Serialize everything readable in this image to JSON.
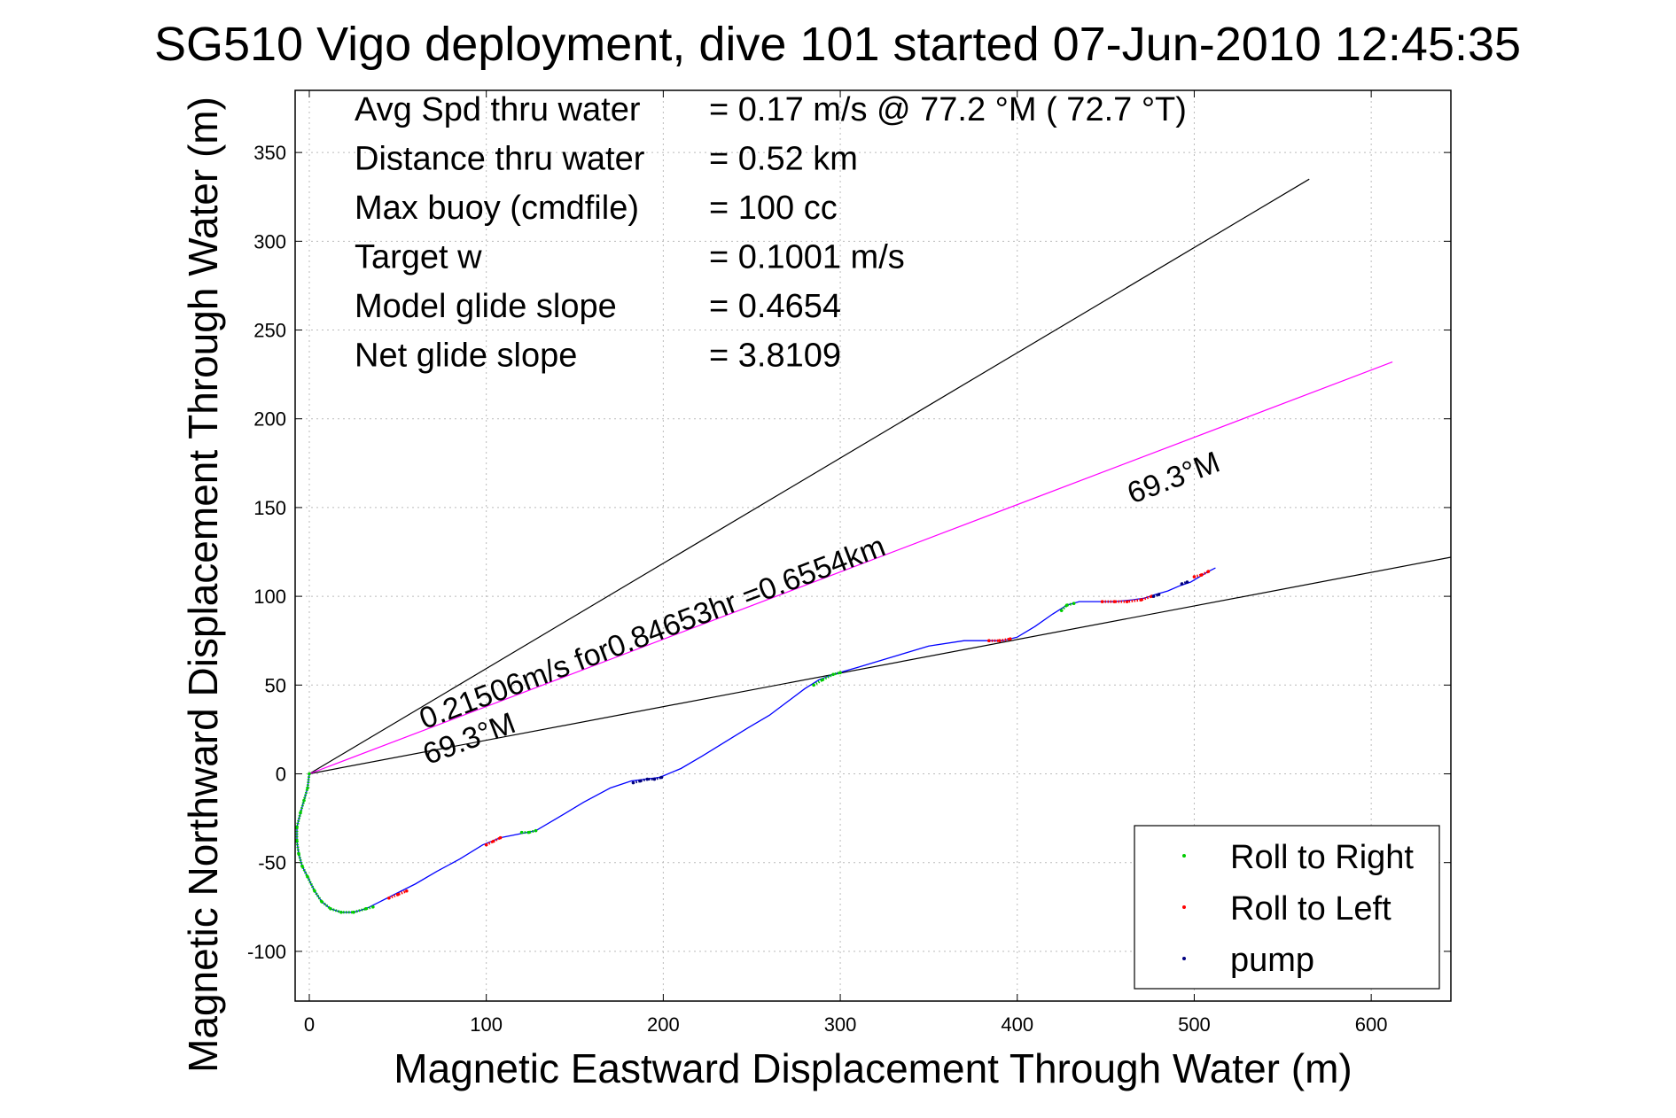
{
  "chart_data": {
    "type": "scatter",
    "title": "SG510 Vigo deployment, dive 101 started 07-Jun-2010 12:45:35",
    "xlabel": "Magnetic Eastward Displacement Through Water (m)",
    "ylabel": "Magnetic Northward Displacement Through Water (m)",
    "xlim": [
      -8,
      645
    ],
    "ylim": [
      -128,
      385
    ],
    "xticks": [
      0,
      100,
      200,
      300,
      400,
      500,
      600
    ],
    "yticks": [
      -100,
      -50,
      0,
      50,
      100,
      150,
      200,
      250,
      300,
      350
    ],
    "grid": true,
    "legend_position": "bottom-right",
    "stats": [
      {
        "label": "Avg Spd thru water",
        "value": "=  0.17 m/s @  77.2 °M ( 72.7 °T)"
      },
      {
        "label": "Distance thru water",
        "value": "=  0.52 km"
      },
      {
        "label": "Max buoy (cmdfile)",
        "value": "= 100 cc"
      },
      {
        "label": "Target w",
        "value": "= 0.1001 m/s"
      },
      {
        "label": "Model glide slope",
        "value": "= 0.4654"
      },
      {
        "label": "Net glide slope",
        "value": "= 3.8109"
      }
    ],
    "annotations": [
      {
        "text": "0.21506m/s for0.84653hr =0.6554km",
        "x": 65,
        "y": 25
      },
      {
        "text": "69.3°M",
        "x": 67,
        "y": 5
      },
      {
        "text": "69.3°M",
        "x": 465,
        "y": 152
      }
    ],
    "reference_lines": [
      {
        "color": "#000000",
        "points": [
          [
            0,
            0
          ],
          [
            565,
            335
          ]
        ]
      },
      {
        "color": "#000000",
        "points": [
          [
            0,
            0
          ],
          [
            645,
            122
          ]
        ]
      },
      {
        "color": "#ff00ff",
        "points": [
          [
            0,
            0
          ],
          [
            612,
            232
          ]
        ]
      }
    ],
    "track": {
      "color": "#0000ff",
      "x": [
        0,
        -1,
        -3,
        -5,
        -7,
        -7,
        -6,
        -4,
        -1,
        3,
        7,
        12,
        18,
        25,
        32,
        40,
        50,
        60,
        72,
        85,
        98,
        108,
        118,
        128,
        140,
        155,
        170,
        182,
        190,
        198,
        210,
        222,
        235,
        248,
        260,
        272,
        280,
        288,
        296,
        310,
        330,
        350,
        370,
        385,
        392,
        400,
        410,
        420,
        428,
        435,
        445,
        455,
        465,
        472,
        478,
        485,
        492,
        498,
        503,
        508,
        512
      ],
      "y": [
        0,
        -8,
        -15,
        -22,
        -30,
        -38,
        -45,
        -52,
        -58,
        -66,
        -72,
        -76,
        -78,
        -78,
        -76,
        -72,
        -67,
        -62,
        -55,
        -48,
        -40,
        -36,
        -34,
        -32,
        -25,
        -16,
        -8,
        -4,
        -3,
        -2,
        3,
        10,
        18,
        26,
        33,
        42,
        48,
        53,
        56,
        60,
        66,
        72,
        75,
        75,
        75,
        77,
        83,
        90,
        95,
        97,
        97,
        97,
        98,
        99,
        101,
        103,
        106,
        108,
        111,
        114,
        116
      ]
    },
    "series": [
      {
        "name": "Roll to Right",
        "color": "#00cc00",
        "segments": [
          {
            "x": [
              0,
              -1,
              -3,
              -5,
              -7,
              -7,
              -6,
              -4,
              -1,
              3,
              7,
              12,
              18,
              25,
              32,
              36
            ],
            "y": [
              0,
              -8,
              -15,
              -22,
              -30,
              -38,
              -45,
              -52,
              -58,
              -66,
              -72,
              -76,
              -78,
              -78,
              -76,
              -75
            ]
          },
          {
            "x": [
              120,
              124,
              128
            ],
            "y": [
              -33,
              -33,
              -32
            ]
          },
          {
            "x": [
              285,
              290,
              296,
              300
            ],
            "y": [
              50,
              53,
              56,
              57
            ]
          },
          {
            "x": [
              425,
              428,
              432
            ],
            "y": [
              92,
              95,
              96
            ]
          }
        ]
      },
      {
        "name": "Roll to Left",
        "color": "#ff0000",
        "segments": [
          {
            "x": [
              45,
              50,
              55
            ],
            "y": [
              -70,
              -68,
              -66
            ]
          },
          {
            "x": [
              100,
              104,
              108
            ],
            "y": [
              -40,
              -38,
              -36
            ]
          },
          {
            "x": [
              384,
              390,
              396
            ],
            "y": [
              75,
              75,
              76
            ]
          },
          {
            "x": [
              448,
              455,
              462,
              470,
              476
            ],
            "y": [
              97,
              97,
              97,
              98,
              100
            ]
          },
          {
            "x": [
              500,
              504,
              508
            ],
            "y": [
              111,
              112,
              114
            ]
          }
        ]
      },
      {
        "name": "pump",
        "color": "#000080",
        "segments": [
          {
            "x": [
              183,
              187,
              191,
              195,
              199
            ],
            "y": [
              -5,
              -4,
              -3,
              -3,
              -2
            ]
          },
          {
            "x": [
              477,
              480
            ],
            "y": [
              100,
              101
            ]
          },
          {
            "x": [
              493,
              496
            ],
            "y": [
              107,
              108
            ]
          }
        ]
      }
    ]
  }
}
